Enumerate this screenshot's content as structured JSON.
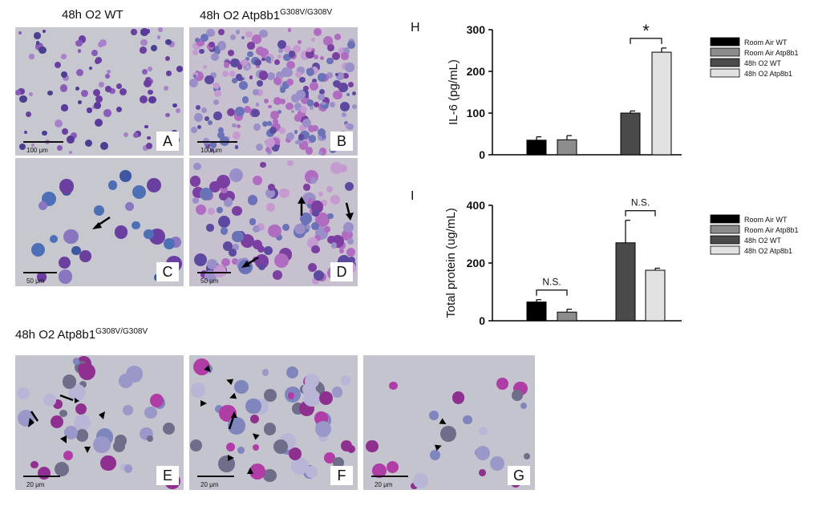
{
  "column_titles": {
    "wt": "48h O2 WT",
    "mut_prefix": "48h O2 Atp8b1",
    "mut_sup": "G308V/G308V"
  },
  "row_title": {
    "prefix": "48h O2 Atp8b1",
    "sup": "G308V/G308V"
  },
  "panels": {
    "A": {
      "letter": "A",
      "scale": "100 μm"
    },
    "B": {
      "letter": "B",
      "scale": "100 μm"
    },
    "C": {
      "letter": "C",
      "scale": "50 μm"
    },
    "D": {
      "letter": "D",
      "scale": "50 μm"
    },
    "E": {
      "letter": "E",
      "scale": "20 μm"
    },
    "F": {
      "letter": "F",
      "scale": "20 μm"
    },
    "G": {
      "letter": "G",
      "scale": "20 μm"
    }
  },
  "chart_data": [
    {
      "panel": "H",
      "type": "bar",
      "ylabel": "IL-6 (pg/mL)",
      "ylim": [
        0,
        300
      ],
      "yticks": [
        "0",
        "100",
        "200",
        "300"
      ],
      "categories": [
        "Room Air WT",
        "Room Air Atp8b1",
        "48h O2 WT",
        "48h O2 Atp8b1"
      ],
      "values": [
        35,
        36,
        100,
        246
      ],
      "errors": [
        8,
        10,
        5,
        10
      ],
      "colors": [
        "#000000",
        "#8c8c8c",
        "#4a4a4a",
        "#e2e2e2"
      ],
      "legend": [
        "Room Air WT",
        "Room Air Atp8b1",
        "48h O2 WT",
        "48h O2 Atp8b1"
      ],
      "annotations": [
        {
          "text": "*",
          "between": [
            2,
            3
          ]
        }
      ]
    },
    {
      "panel": "I",
      "type": "bar",
      "ylabel": "Total protein (ug/mL)",
      "ylim": [
        0,
        400
      ],
      "yticks": [
        "0",
        "200",
        "400"
      ],
      "categories": [
        "Room Air WT",
        "Room Air Atp8b1",
        "48h O2 WT",
        "48h O2 Atp8b1"
      ],
      "values": [
        65,
        30,
        270,
        175
      ],
      "errors": [
        8,
        10,
        78,
        7
      ],
      "colors": [
        "#000000",
        "#8c8c8c",
        "#4a4a4a",
        "#e2e2e2"
      ],
      "legend": [
        "Room Air WT",
        "Room Air Atp8b1",
        "48h O2 WT",
        "48h O2 Atp8b1"
      ],
      "annotations": [
        {
          "text": "N.S.",
          "between": [
            0,
            1
          ]
        },
        {
          "text": "N.S.",
          "between": [
            2,
            3
          ]
        }
      ]
    }
  ]
}
